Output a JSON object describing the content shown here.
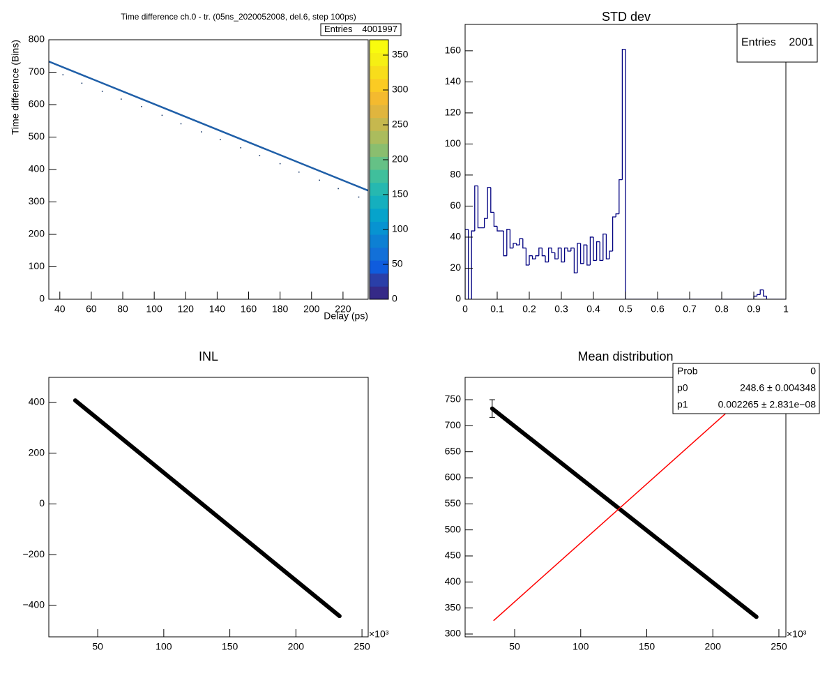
{
  "chart_data": [
    {
      "type": "heatmap",
      "title": "Time difference ch.0 - tr. (05ns_2020052008, del.6, step 100ps)",
      "xlabel": "Delay (ps)",
      "ylabel": "Time difference (Bins)",
      "x": [
        33,
        236
      ],
      "values": [
        733,
        335
      ],
      "color": "#1f5fa8",
      "points": {
        "x": [
          42,
          54,
          67,
          79,
          92,
          105,
          117,
          130,
          142,
          155,
          167,
          180,
          192,
          205,
          217,
          230
        ],
        "values": [
          692,
          666,
          641,
          617,
          594,
          567,
          541,
          516,
          492,
          467,
          443,
          418,
          392,
          367,
          341,
          315
        ]
      },
      "xlim": [
        33,
        236
      ],
      "xticks": [
        40,
        60,
        80,
        100,
        120,
        140,
        160,
        180,
        200,
        220
      ],
      "ylim": [
        0,
        800
      ],
      "yticks": [
        0,
        100,
        200,
        300,
        400,
        500,
        600,
        700,
        800
      ],
      "zlim": [
        0,
        372
      ],
      "zticks": [
        0,
        50,
        100,
        150,
        200,
        250,
        300,
        350
      ],
      "palette": [
        "#352a87",
        "#2a3fa8",
        "#0f5cdd",
        "#1270d8",
        "#0d80d3",
        "#0793d1",
        "#06a3cb",
        "#15afbe",
        "#26b8b0",
        "#40bf9c",
        "#65c186",
        "#8abe6f",
        "#abbc5d",
        "#c6b84e",
        "#e0b53e",
        "#f4ba2f",
        "#fbcb23",
        "#f8dd1b",
        "#f6ef14",
        "#f9fb0e"
      ],
      "stats": [
        {
          "label": "Entries",
          "value": 4001997
        }
      ]
    },
    {
      "type": "histogram",
      "title": "STD dev",
      "color": "#000080",
      "bins": [
        0,
        0.01,
        0.02,
        0.03,
        0.04,
        0.05,
        0.06,
        0.07,
        0.08,
        0.09,
        0.1,
        0.11,
        0.12,
        0.13,
        0.14,
        0.15,
        0.16,
        0.17,
        0.18,
        0.19,
        0.2,
        0.21,
        0.22,
        0.23,
        0.24,
        0.25,
        0.26,
        0.27,
        0.28,
        0.29,
        0.3,
        0.31,
        0.32,
        0.33,
        0.34,
        0.35,
        0.36,
        0.37,
        0.38,
        0.39,
        0.4,
        0.41,
        0.42,
        0.43,
        0.44,
        0.45,
        0.46,
        0.47,
        0.48,
        0.49,
        0.5,
        0.51,
        0.52,
        0.53,
        0.54,
        0.55,
        0.56,
        0.57,
        0.58,
        0.59,
        0.6,
        0.61,
        0.62,
        0.63,
        0.64,
        0.65,
        0.66,
        0.67,
        0.68,
        0.69,
        0.7,
        0.71,
        0.72,
        0.73,
        0.74,
        0.75,
        0.76,
        0.77,
        0.78,
        0.79,
        0.8,
        0.81,
        0.82,
        0.83,
        0.84,
        0.85,
        0.86,
        0.87,
        0.88,
        0.89,
        0.9,
        0.91,
        0.92,
        0.93,
        0.94,
        0.95,
        0.96,
        0.97,
        0.98,
        0.99,
        1
      ],
      "values": [
        45,
        0,
        44,
        73,
        46,
        46,
        52,
        72,
        56,
        47,
        44,
        44,
        28,
        45,
        33,
        36,
        35,
        39,
        33,
        22,
        28,
        26,
        28,
        33,
        28,
        24,
        33,
        30,
        26,
        33,
        24,
        33,
        31,
        33,
        17,
        36,
        23,
        35,
        22,
        40,
        25,
        37,
        25,
        42,
        26,
        31,
        53,
        55,
        77,
        161,
        0,
        0,
        0,
        0,
        0,
        0,
        0,
        0,
        0,
        0,
        0,
        0,
        0,
        0,
        0,
        0,
        0,
        0,
        0,
        0,
        0,
        0,
        0,
        0,
        0,
        0,
        0,
        0,
        0,
        0,
        0,
        0,
        0,
        0,
        0,
        0,
        0,
        0,
        0,
        0,
        2,
        3,
        6,
        2,
        0,
        0,
        0,
        0,
        0,
        0
      ],
      "xlim": [
        0,
        1
      ],
      "xticks": [
        0,
        0.1,
        0.2,
        0.3,
        0.4,
        0.5,
        0.6,
        0.7,
        0.8,
        0.9,
        1
      ],
      "ylim": [
        0,
        177
      ],
      "yticks": [
        0,
        20,
        40,
        60,
        80,
        100,
        120,
        140,
        160
      ],
      "stats": [
        {
          "label": "Entries",
          "value": 2001
        }
      ]
    },
    {
      "type": "line",
      "title": "INL",
      "x_multiplier": "×10³",
      "series": [
        {
          "color": "#000000",
          "x": [
            33,
            233
          ],
          "values": [
            408,
            -442
          ]
        }
      ],
      "xlim": [
        13,
        254.7
      ],
      "xticks": [
        50,
        100,
        150,
        200,
        250
      ],
      "ylim": [
        -524,
        499
      ],
      "yticks": [
        {
          "value": -400,
          "label": "−400"
        },
        {
          "value": -200,
          "label": "−200"
        },
        0,
        200,
        400
      ]
    },
    {
      "type": "line",
      "title": "Mean distribution",
      "x_multiplier": "×10³",
      "series": [
        {
          "color": "#000000",
          "x": [
            33,
            233
          ],
          "values": [
            733,
            333
          ]
        }
      ],
      "error_bar": {
        "x": 33,
        "value": 733,
        "error": 17
      },
      "fit_line": {
        "color": "#ff0000",
        "x": [
          34,
          233
        ],
        "values": [
          325.6,
          776.3
        ]
      },
      "xlim": [
        12.5,
        255.3
      ],
      "xticks": [
        50,
        100,
        150,
        200,
        250
      ],
      "ylim": [
        294.6,
        792.9
      ],
      "yticks": [
        300,
        350,
        400,
        450,
        500,
        550,
        600,
        650,
        700,
        750
      ],
      "stats": [
        {
          "label": "Prob",
          "value": "0"
        },
        {
          "label": "p0",
          "value": "248.6 ± 0.004348"
        },
        {
          "label": "p1",
          "value": "0.002265 ± 2.831e−08"
        }
      ]
    }
  ]
}
